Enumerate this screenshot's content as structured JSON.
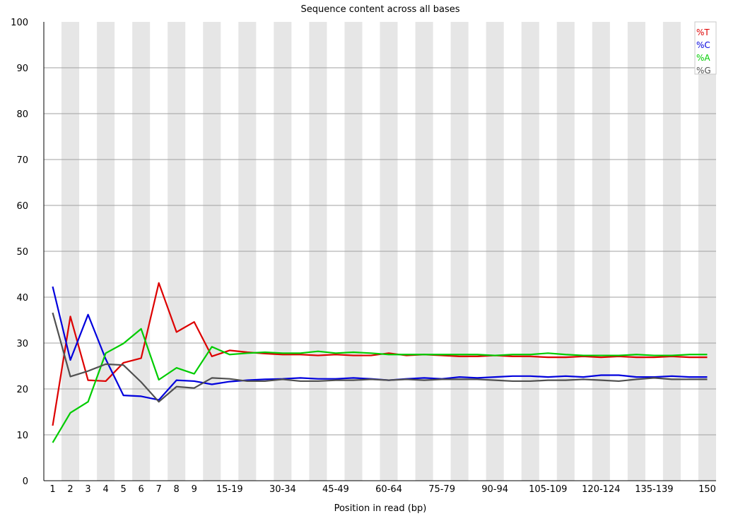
{
  "chart_data": {
    "type": "line",
    "title": "Sequence content across all bases",
    "xlabel": "Position in read (bp)",
    "ylabel": "",
    "ylim": [
      0,
      100
    ],
    "yticks": [
      0,
      10,
      20,
      30,
      40,
      50,
      60,
      70,
      80,
      90,
      100
    ],
    "grid": true,
    "legend_position": "top-right",
    "categories": [
      "1",
      "2",
      "3",
      "4",
      "5",
      "6",
      "7",
      "8",
      "9",
      "10-14",
      "15-19",
      "20-24",
      "25-29",
      "30-34",
      "35-39",
      "40-44",
      "45-49",
      "50-54",
      "55-59",
      "60-64",
      "65-69",
      "70-74",
      "75-79",
      "80-84",
      "85-89",
      "90-94",
      "95-99",
      "100-104",
      "105-109",
      "110-114",
      "115-119",
      "120-124",
      "125-129",
      "130-134",
      "135-139",
      "140-144",
      "145-149",
      "150"
    ],
    "visible_tick_labels": [
      "1",
      "2",
      "3",
      "4",
      "5",
      "6",
      "7",
      "8",
      "9",
      "15-19",
      "30-34",
      "45-49",
      "60-64",
      "75-79",
      "90-94",
      "105-109",
      "120-124",
      "135-139",
      "150"
    ],
    "series": [
      {
        "name": "%T",
        "color": "#dd0000",
        "values": [
          12.0,
          35.8,
          21.9,
          21.7,
          25.7,
          26.7,
          43.1,
          32.4,
          34.6,
          27.1,
          28.4,
          28.0,
          27.7,
          27.5,
          27.5,
          27.3,
          27.5,
          27.3,
          27.3,
          27.8,
          27.3,
          27.5,
          27.3,
          27.1,
          27.1,
          27.3,
          27.1,
          27.1,
          26.9,
          26.9,
          27.1,
          26.9,
          27.1,
          26.9,
          26.9,
          27.1,
          26.9,
          26.9
        ]
      },
      {
        "name": "%C",
        "color": "#0000dd",
        "values": [
          42.3,
          26.3,
          36.2,
          26.5,
          18.6,
          18.4,
          17.6,
          21.9,
          21.7,
          21.0,
          21.6,
          21.9,
          22.1,
          22.2,
          22.4,
          22.2,
          22.2,
          22.4,
          22.2,
          21.9,
          22.2,
          22.4,
          22.2,
          22.6,
          22.4,
          22.6,
          22.8,
          22.8,
          22.6,
          22.8,
          22.6,
          23.0,
          23.0,
          22.6,
          22.6,
          22.8,
          22.6,
          22.6
        ]
      },
      {
        "name": "%A",
        "color": "#00cc00",
        "values": [
          8.3,
          14.8,
          17.2,
          27.8,
          29.9,
          33.1,
          22.0,
          24.6,
          23.3,
          29.2,
          27.5,
          27.8,
          28.0,
          27.8,
          27.8,
          28.2,
          27.8,
          28.0,
          27.8,
          27.5,
          27.5,
          27.5,
          27.5,
          27.5,
          27.5,
          27.3,
          27.5,
          27.5,
          27.8,
          27.5,
          27.3,
          27.3,
          27.3,
          27.5,
          27.3,
          27.3,
          27.5,
          27.5
        ]
      },
      {
        "name": "%G",
        "color": "#505050",
        "values": [
          36.6,
          22.7,
          23.9,
          25.4,
          25.2,
          21.5,
          17.2,
          20.5,
          20.2,
          22.4,
          22.2,
          21.7,
          21.7,
          22.1,
          21.7,
          21.7,
          21.9,
          21.9,
          22.1,
          21.9,
          22.1,
          21.9,
          22.1,
          22.1,
          22.1,
          21.9,
          21.7,
          21.7,
          21.9,
          21.9,
          22.1,
          21.9,
          21.7,
          22.1,
          22.4,
          22.1,
          22.1,
          22.1
        ]
      }
    ]
  }
}
